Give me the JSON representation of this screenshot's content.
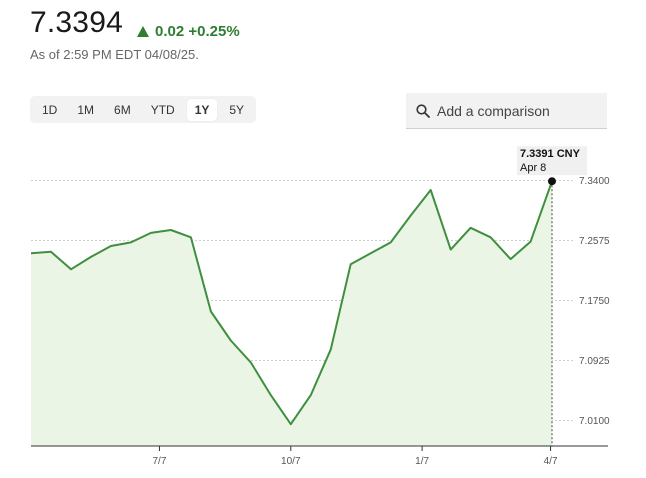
{
  "header": {
    "price": "7.3394",
    "change": "0.02 +0.25%",
    "as_of": "As of 2:59 PM EDT 04/08/25."
  },
  "ranges": [
    {
      "label": "1D",
      "active": false
    },
    {
      "label": "1M",
      "active": false
    },
    {
      "label": "6M",
      "active": false
    },
    {
      "label": "YTD",
      "active": false
    },
    {
      "label": "1Y",
      "active": true
    },
    {
      "label": "5Y",
      "active": false
    }
  ],
  "comparison": {
    "placeholder": "Add a comparison",
    "icon": "search-icon"
  },
  "colors": {
    "line": "#3f8f3f",
    "fill": "#eaf5e6",
    "accent": "#2e7d32"
  },
  "tooltip": {
    "value": "7.3391 CNY",
    "date": "Apr 8"
  },
  "chart_data": {
    "type": "area",
    "x": [
      "2024-04-08",
      "2024-04-22",
      "2024-05-06",
      "2024-05-20",
      "2024-06-03",
      "2024-06-17",
      "2024-07-01",
      "2024-07-15",
      "2024-07-29",
      "2024-08-12",
      "2024-08-26",
      "2024-09-09",
      "2024-09-23",
      "2024-10-07",
      "2024-10-21",
      "2024-11-04",
      "2024-11-18",
      "2024-12-02",
      "2024-12-16",
      "2024-12-30",
      "2025-01-13",
      "2025-01-27",
      "2025-02-10",
      "2025-02-24",
      "2025-03-10",
      "2025-03-24",
      "2025-04-08"
    ],
    "series": [
      {
        "values": [
          7.24,
          7.242,
          7.218,
          7.235,
          7.25,
          7.255,
          7.268,
          7.272,
          7.262,
          7.16,
          7.12,
          7.09,
          7.045,
          7.005,
          7.045,
          7.108,
          7.225,
          7.24,
          7.255,
          7.292,
          7.327,
          7.245,
          7.275,
          7.262,
          7.232,
          7.256,
          7.3391
        ]
      }
    ],
    "x_ticks": [
      "7/7",
      "10/7",
      "1/7",
      "4/7"
    ],
    "x_tick_dates": [
      "2024-07-07",
      "2024-10-07",
      "2025-01-07",
      "2025-04-07"
    ],
    "y_ticks": [
      "7.0100",
      "7.0925",
      "7.1750",
      "7.2575",
      "7.3400"
    ],
    "ylim": [
      6.975,
      7.382
    ],
    "grid": "horizontal-dotted"
  }
}
